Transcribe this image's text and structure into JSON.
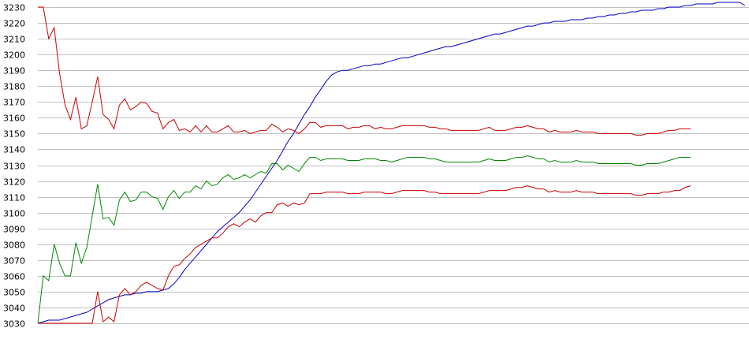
{
  "chart_data": {
    "type": "line",
    "title": "",
    "xlabel": "",
    "ylabel": "",
    "ylim": [
      3030,
      3230
    ],
    "y_ticks": [
      "3030",
      "3040",
      "3050",
      "3060",
      "3070",
      "3080",
      "3090",
      "3100",
      "3110",
      "3120",
      "3130",
      "3140",
      "3150",
      "3160",
      "3170",
      "3180",
      "3190",
      "3200",
      "3210",
      "3220",
      "3230"
    ],
    "grid": "horizontal",
    "x_range": [
      0,
      130
    ],
    "series": [
      {
        "color": "#0000cc",
        "values": [
          3030,
          3031,
          3032,
          3032,
          3032,
          3033,
          3034,
          3035,
          3036,
          3037,
          3039,
          3041,
          3043,
          3045,
          3046,
          3047,
          3048,
          3048,
          3049,
          3049,
          3050,
          3050,
          3050,
          3051,
          3052,
          3055,
          3059,
          3064,
          3068,
          3072,
          3076,
          3080,
          3084,
          3088,
          3091,
          3094,
          3097,
          3100,
          3104,
          3108,
          3113,
          3118,
          3123,
          3128,
          3133,
          3139,
          3145,
          3150,
          3156,
          3162,
          3167,
          3173,
          3178,
          3183,
          3187,
          3189,
          3190,
          3190,
          3191,
          3192,
          3193,
          3193,
          3194,
          3194,
          3195,
          3196,
          3197,
          3198,
          3198,
          3199,
          3200,
          3201,
          3202,
          3203,
          3204,
          3205,
          3205,
          3206,
          3207,
          3208,
          3209,
          3210,
          3211,
          3212,
          3213,
          3213,
          3214,
          3215,
          3216,
          3217,
          3218,
          3218,
          3219,
          3220,
          3220,
          3221,
          3221,
          3221,
          3222,
          3222,
          3222,
          3223,
          3223,
          3224,
          3224,
          3225,
          3225,
          3226,
          3226,
          3227,
          3227,
          3228,
          3228,
          3228,
          3229,
          3229,
          3230,
          3230,
          3230,
          3231,
          3231,
          3232,
          3232,
          3232,
          3232,
          3233,
          3233,
          3233,
          3233,
          3233,
          3231
        ]
      },
      {
        "color": "#cc0000",
        "values": [
          3230,
          3230,
          3210,
          3217,
          3188,
          3168,
          3159,
          3173,
          3153,
          3155,
          3170,
          3186,
          3162,
          3159,
          3153,
          3168,
          3172,
          3165,
          3167,
          3170,
          3169,
          3164,
          3163,
          3153,
          3157,
          3159,
          3152,
          3153,
          3151,
          3155,
          3151,
          3155,
          3151,
          3151,
          3153,
          3155,
          3151,
          3151,
          3152,
          3150,
          3151,
          3152,
          3152,
          3156,
          3154,
          3151,
          3153,
          3152,
          3150,
          3153,
          3157,
          3157,
          3154,
          3155,
          3155,
          3155,
          3155,
          3153,
          3154,
          3154,
          3155,
          3155,
          3153,
          3154,
          3153,
          3153,
          3154,
          3155,
          3155,
          3155,
          3155,
          3155,
          3154,
          3154,
          3153,
          3153,
          3152,
          3152,
          3152,
          3152,
          3152,
          3152,
          3153,
          3154,
          3152,
          3152,
          3152,
          3153,
          3154,
          3154,
          3155,
          3154,
          3153,
          3153,
          3151,
          3152,
          3151,
          3151,
          3151,
          3152,
          3151,
          3151,
          3151,
          3150,
          3150,
          3150,
          3150,
          3150,
          3150,
          3150,
          3149,
          3149,
          3150,
          3150,
          3150,
          3151,
          3152,
          3152,
          3153,
          3153,
          3153
        ]
      },
      {
        "color": "#008800",
        "values": [
          3030,
          3060,
          3057,
          3080,
          3068,
          3060,
          3060,
          3081,
          3068,
          3078,
          3098,
          3118,
          3096,
          3097,
          3092,
          3108,
          3113,
          3107,
          3108,
          3113,
          3113,
          3110,
          3109,
          3102,
          3110,
          3114,
          3109,
          3113,
          3113,
          3117,
          3115,
          3120,
          3117,
          3118,
          3122,
          3124,
          3121,
          3122,
          3124,
          3122,
          3124,
          3126,
          3125,
          3131,
          3131,
          3127,
          3130,
          3128,
          3126,
          3131,
          3135,
          3135,
          3133,
          3134,
          3134,
          3134,
          3134,
          3133,
          3133,
          3133,
          3134,
          3134,
          3134,
          3133,
          3133,
          3132,
          3133,
          3134,
          3135,
          3135,
          3135,
          3135,
          3134,
          3134,
          3133,
          3132,
          3132,
          3132,
          3132,
          3132,
          3132,
          3132,
          3133,
          3134,
          3133,
          3133,
          3133,
          3134,
          3135,
          3135,
          3136,
          3135,
          3134,
          3134,
          3132,
          3133,
          3132,
          3132,
          3132,
          3133,
          3132,
          3132,
          3132,
          3131,
          3131,
          3131,
          3131,
          3131,
          3131,
          3131,
          3130,
          3130,
          3131,
          3131,
          3131,
          3132,
          3133,
          3134,
          3135,
          3135,
          3135
        ]
      },
      {
        "color": "#cc0000",
        "values": [
          3030,
          3030,
          3030,
          3030,
          3030,
          3030,
          3030,
          3030,
          3030,
          3030,
          3030,
          3050,
          3031,
          3034,
          3031,
          3048,
          3052,
          3048,
          3050,
          3054,
          3056,
          3054,
          3052,
          3051,
          3060,
          3066,
          3067,
          3071,
          3074,
          3078,
          3080,
          3082,
          3084,
          3084,
          3087,
          3091,
          3093,
          3091,
          3094,
          3096,
          3094,
          3098,
          3100,
          3100,
          3105,
          3106,
          3104,
          3106,
          3105,
          3106,
          3112,
          3112,
          3112,
          3113,
          3113,
          3113,
          3113,
          3112,
          3112,
          3112,
          3113,
          3113,
          3113,
          3113,
          3112,
          3112,
          3113,
          3114,
          3114,
          3114,
          3114,
          3114,
          3113,
          3113,
          3112,
          3112,
          3112,
          3112,
          3112,
          3112,
          3112,
          3112,
          3113,
          3114,
          3114,
          3114,
          3114,
          3115,
          3116,
          3116,
          3117,
          3116,
          3115,
          3115,
          3113,
          3114,
          3113,
          3113,
          3113,
          3114,
          3113,
          3113,
          3113,
          3112,
          3112,
          3112,
          3112,
          3112,
          3112,
          3112,
          3111,
          3111,
          3112,
          3112,
          3112,
          3113,
          3113,
          3114,
          3114,
          3116,
          3117
        ]
      }
    ]
  }
}
